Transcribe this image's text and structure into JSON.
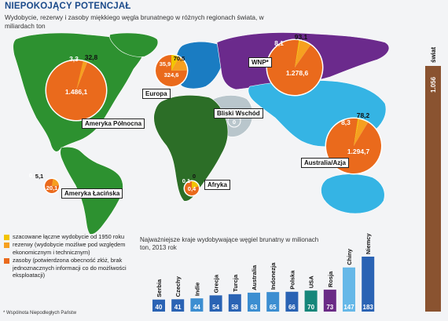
{
  "header": {
    "title": "NIEPOKOJĄCY POTENCJAŁ",
    "subtitle": "Wydobycie, rezerwy i zasoby miękkiego węgla brunatnego w różnych regionach świata, w miliardach ton"
  },
  "colors": {
    "extracted": "#f2c400",
    "reserves": "#f6a020",
    "resources": "#ea6a1c",
    "world_bar": "#8a5330",
    "bar_default": "#2a63b4",
    "bar_mid": "#3c8ed1",
    "bar_light": "#66b8e8",
    "bar_purple": "#6a2b86",
    "bar_teal": "#16867a",
    "land_americas": "#2d9130",
    "land_europe": "#1a7cc2",
    "land_cis": "#6b2a8c",
    "land_asia": "#35b4e4",
    "land_africa": "#2c6e27",
    "land_middle_east": "#b9c6cc"
  },
  "legend": {
    "items": [
      {
        "key": "extracted",
        "label": "szacowane łączne wydobycie od 1950 roku"
      },
      {
        "key": "reserves",
        "label": "rezerwy (wydobycie możliwe pod względem ekonomicznym i technicznym)"
      },
      {
        "key": "resources",
        "label": "zasoby (potwierdzona obecność złóż, brak jednoznacznych informacji co do możliwości eksploatacji)"
      }
    ]
  },
  "footnote": "* Wspólnota Niepodległych Państw",
  "chart_data": [
    {
      "type": "pie",
      "title": "Wydobycie, rezerwy i zasoby miękkiego węgla brunatnego w różnych regionach świata, w miliardach ton",
      "series_keys": [
        "extracted",
        "reserves",
        "resources"
      ],
      "regions": [
        {
          "name": "Ameryka Północna",
          "values": {
            "extracted": 3.3,
            "reserves": 32.8,
            "resources": 1486.1
          },
          "value_labels": [
            "3,3",
            "32,8",
            "1.486,1"
          ]
        },
        {
          "name": "Europa",
          "values": {
            "extracted": 35.9,
            "reserves": 70.5,
            "resources": 324.6
          },
          "value_labels": [
            "35,9",
            "70,5",
            "324,6"
          ]
        },
        {
          "name": "WNP*",
          "values": {
            "extracted": 8.1,
            "reserves": 93.1,
            "resources": 1278.6
          },
          "value_labels": [
            "8,1",
            "93,1",
            "1.278,6"
          ]
        },
        {
          "name": "Bliski Wschód",
          "values": {
            "extracted": 0,
            "reserves": 0,
            "resources": 0
          },
          "value_labels": [
            "0"
          ]
        },
        {
          "name": "Australia/Azja",
          "values": {
            "extracted": 8.3,
            "reserves": 78.2,
            "resources": 1294.7
          },
          "value_labels": [
            "8,3",
            "78,2",
            "1.294,7"
          ]
        },
        {
          "name": "Ameryka Łacińska",
          "values": {
            "extracted": 0.1,
            "reserves": 5.1,
            "resources": 20.1
          },
          "value_labels": [
            "0,1",
            "5,1",
            "20,1"
          ]
        },
        {
          "name": "Afryka",
          "values": {
            "extracted": 0.1,
            "reserves": 0,
            "resources": 0.4
          },
          "value_labels": [
            "0,1",
            "0",
            "0,4"
          ]
        }
      ],
      "world_total": {
        "name": "świat",
        "value": 1056,
        "value_label": "1.056"
      }
    },
    {
      "type": "bar",
      "title": "Najważniejsze kraje wydobywające węgiel brunatny w milionach ton, 2013 rok",
      "categories": [
        "Serbia",
        "Czechy",
        "Indie",
        "Grecja",
        "Turcja",
        "Australia",
        "Indonezja",
        "Polska",
        "USA",
        "Rosja",
        "Chiny",
        "Niemcy"
      ],
      "values": [
        40,
        41,
        44,
        54,
        58,
        63,
        65,
        66,
        70,
        73,
        147,
        183
      ],
      "ylim": [
        0,
        183
      ]
    }
  ]
}
